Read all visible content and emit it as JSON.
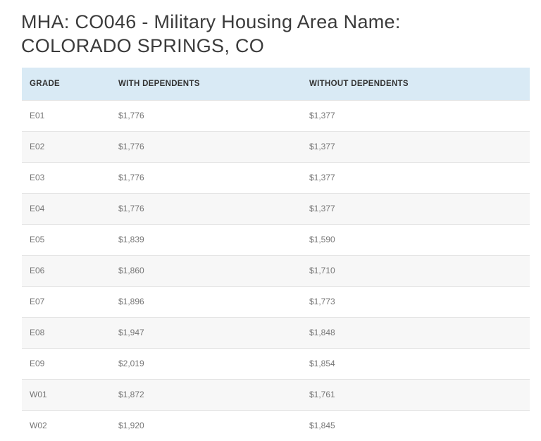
{
  "page": {
    "title": "MHA: CO046 - Military Housing Area Name: COLORADO SPRINGS, CO"
  },
  "table": {
    "columns": [
      "GRADE",
      "WITH DEPENDENTS",
      "WITHOUT DEPENDENTS"
    ],
    "rows": [
      {
        "grade": "E01",
        "with_dependents": "$1,776",
        "without_dependents": "$1,377"
      },
      {
        "grade": "E02",
        "with_dependents": "$1,776",
        "without_dependents": "$1,377"
      },
      {
        "grade": "E03",
        "with_dependents": "$1,776",
        "without_dependents": "$1,377"
      },
      {
        "grade": "E04",
        "with_dependents": "$1,776",
        "without_dependents": "$1,377"
      },
      {
        "grade": "E05",
        "with_dependents": "$1,839",
        "without_dependents": "$1,590"
      },
      {
        "grade": "E06",
        "with_dependents": "$1,860",
        "without_dependents": "$1,710"
      },
      {
        "grade": "E07",
        "with_dependents": "$1,896",
        "without_dependents": "$1,773"
      },
      {
        "grade": "E08",
        "with_dependents": "$1,947",
        "without_dependents": "$1,848"
      },
      {
        "grade": "E09",
        "with_dependents": "$2,019",
        "without_dependents": "$1,854"
      },
      {
        "grade": "W01",
        "with_dependents": "$1,872",
        "without_dependents": "$1,761"
      },
      {
        "grade": "W02",
        "with_dependents": "$1,920",
        "without_dependents": "$1,845"
      }
    ]
  },
  "colors": {
    "header_bg": "#d9eaf5",
    "stripe_bg": "#f7f7f7",
    "row_border": "#e4e4e4",
    "title_text": "#3b3b3b",
    "header_text": "#333333",
    "cell_text": "#757575",
    "page_bg": "#ffffff"
  }
}
